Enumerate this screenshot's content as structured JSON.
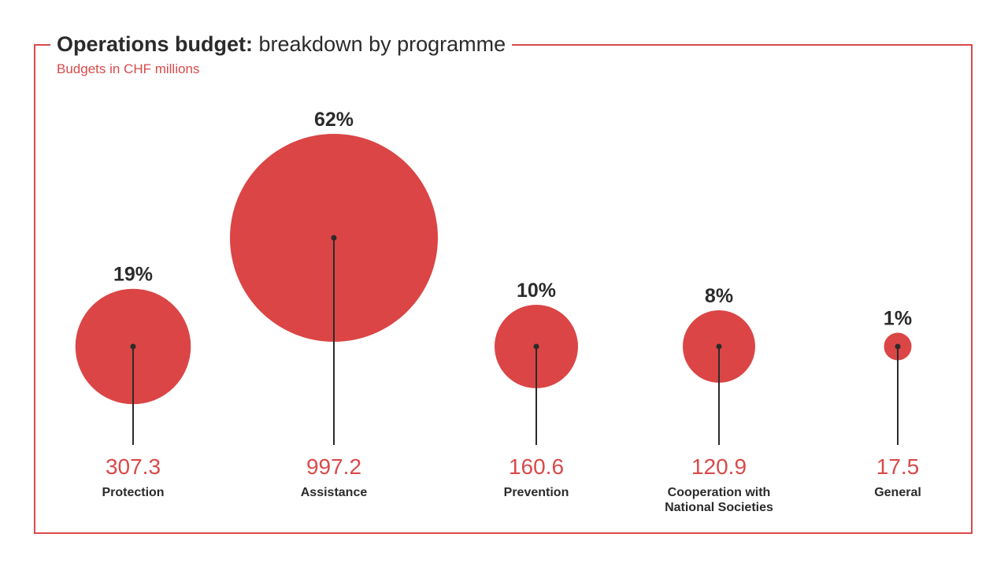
{
  "chart_data": {
    "type": "bubble",
    "title_bold": "Operations budget:",
    "title_rest": "breakdown by programme",
    "subtitle": "Budgets in CHF millions",
    "categories": [
      "Protection",
      "Assistance",
      "Prevention",
      "Cooperation with National Societies",
      "General"
    ],
    "category_lines": [
      [
        "Protection"
      ],
      [
        "Assistance"
      ],
      [
        "Prevention"
      ],
      [
        "Cooperation with",
        "National Societies"
      ],
      [
        "General"
      ]
    ],
    "values": [
      307.3,
      997.2,
      160.6,
      120.9,
      17.5
    ],
    "value_labels": [
      "307.3",
      "997.2",
      "160.6",
      "120.9",
      "17.5"
    ],
    "percentages": [
      19,
      62,
      10,
      8,
      1
    ],
    "percent_labels": [
      "19%",
      "62%",
      "10%",
      "8%",
      "1%"
    ],
    "colors": {
      "bubble": "#db4545",
      "accent": "#d94a4a",
      "text": "#2b2b2b"
    }
  }
}
